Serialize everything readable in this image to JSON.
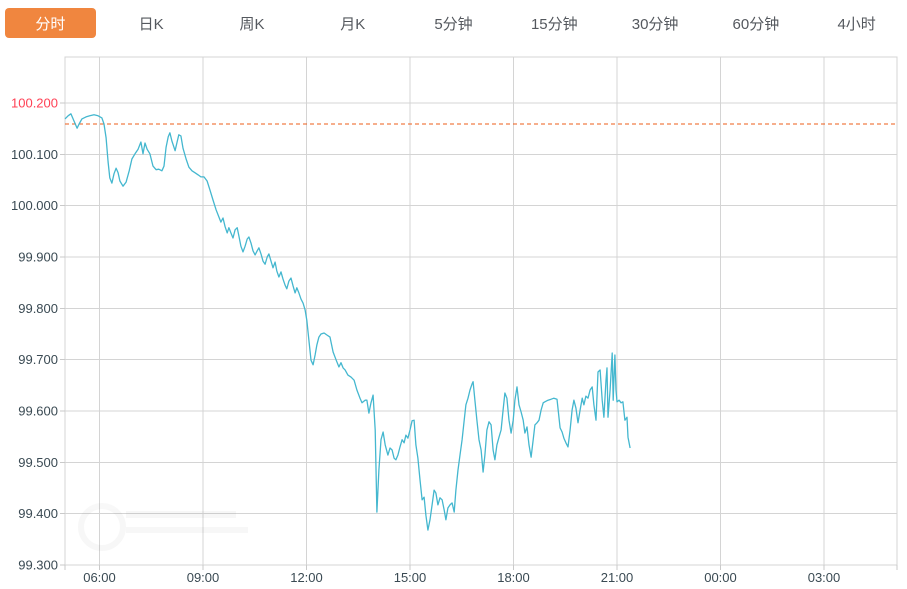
{
  "tabs": [
    {
      "label": "分时",
      "active": true
    },
    {
      "label": "日K",
      "active": false
    },
    {
      "label": "周K",
      "active": false
    },
    {
      "label": "月K",
      "active": false
    },
    {
      "label": "5分钟",
      "active": false
    },
    {
      "label": "15分钟",
      "active": false
    },
    {
      "label": "30分钟",
      "active": false
    },
    {
      "label": "60分钟",
      "active": false
    },
    {
      "label": "4小时",
      "active": false
    }
  ],
  "colors": {
    "accent_orange": "#f0863f",
    "tab_text": "#54585e",
    "axis_text": "#3a4a53",
    "highlight_red": "#ff4155",
    "grid": "#d4d4d4",
    "tick": "#c9c9c9",
    "line": "#44b7cf",
    "previous_close": "#ee5d1a",
    "background": "#ffffff"
  },
  "chart_data": {
    "type": "line",
    "title": "",
    "xlabel": "",
    "ylabel": "",
    "legend": [],
    "grid": true,
    "ylim": [
      99.3,
      100.2
    ],
    "x_hours_visible": [
      0,
      24.1
    ],
    "x_start_time": "05:00",
    "previous_close": 100.159,
    "y_ticks": [
      {
        "label": "100.200",
        "value": 100.2,
        "color": "#ff4155"
      },
      {
        "label": "100.100",
        "value": 100.1,
        "color": "#3a4a53"
      },
      {
        "label": "100.000",
        "value": 100.0,
        "color": "#3a4a53"
      },
      {
        "label": "99.900",
        "value": 99.9,
        "color": "#3a4a53"
      },
      {
        "label": "99.800",
        "value": 99.8,
        "color": "#3a4a53"
      },
      {
        "label": "99.700",
        "value": 99.7,
        "color": "#3a4a53"
      },
      {
        "label": "99.600",
        "value": 99.6,
        "color": "#3a4a53"
      },
      {
        "label": "99.500",
        "value": 99.5,
        "color": "#3a4a53"
      },
      {
        "label": "99.400",
        "value": 99.4,
        "color": "#3a4a53"
      },
      {
        "label": "99.300",
        "value": 99.3,
        "color": "#3a4a53"
      }
    ],
    "x_ticks": [
      {
        "label": "06:00",
        "hour": 1
      },
      {
        "label": "09:00",
        "hour": 4
      },
      {
        "label": "12:00",
        "hour": 7
      },
      {
        "label": "15:00",
        "hour": 10
      },
      {
        "label": "18:00",
        "hour": 13
      },
      {
        "label": "21:00",
        "hour": 16
      },
      {
        "label": "00:00",
        "hour": 19
      },
      {
        "label": "03:00",
        "hour": 22
      }
    ],
    "points": [
      [
        0,
        100.169
      ],
      [
        0.09,
        100.175
      ],
      [
        0.17,
        100.179
      ],
      [
        0.26,
        100.165
      ],
      [
        0.35,
        100.151
      ],
      [
        0.41,
        100.159
      ],
      [
        0.49,
        100.169
      ],
      [
        0.61,
        100.173
      ],
      [
        0.72,
        100.175
      ],
      [
        0.84,
        100.177
      ],
      [
        0.96,
        100.175
      ],
      [
        1.07,
        100.171
      ],
      [
        1.13,
        100.159
      ],
      [
        1.19,
        100.132
      ],
      [
        1.25,
        100.085
      ],
      [
        1.3,
        100.054
      ],
      [
        1.36,
        100.044
      ],
      [
        1.42,
        100.062
      ],
      [
        1.48,
        100.073
      ],
      [
        1.54,
        100.064
      ],
      [
        1.59,
        100.048
      ],
      [
        1.68,
        100.038
      ],
      [
        1.77,
        100.046
      ],
      [
        1.86,
        100.068
      ],
      [
        1.94,
        100.091
      ],
      [
        2.03,
        100.101
      ],
      [
        2.12,
        100.11
      ],
      [
        2.2,
        100.124
      ],
      [
        2.26,
        100.101
      ],
      [
        2.32,
        100.122
      ],
      [
        2.38,
        100.11
      ],
      [
        2.46,
        100.101
      ],
      [
        2.55,
        100.077
      ],
      [
        2.64,
        100.07
      ],
      [
        2.72,
        100.071
      ],
      [
        2.81,
        100.068
      ],
      [
        2.87,
        100.077
      ],
      [
        2.93,
        100.114
      ],
      [
        2.99,
        100.134
      ],
      [
        3.04,
        100.142
      ],
      [
        3.1,
        100.126
      ],
      [
        3.19,
        100.107
      ],
      [
        3.25,
        100.124
      ],
      [
        3.3,
        100.138
      ],
      [
        3.36,
        100.136
      ],
      [
        3.42,
        100.112
      ],
      [
        3.51,
        100.091
      ],
      [
        3.59,
        100.075
      ],
      [
        3.68,
        100.068
      ],
      [
        3.77,
        100.064
      ],
      [
        3.86,
        100.06
      ],
      [
        3.94,
        100.056
      ],
      [
        4.03,
        100.056
      ],
      [
        4.12,
        100.048
      ],
      [
        4.2,
        100.031
      ],
      [
        4.29,
        100.011
      ],
      [
        4.38,
        99.992
      ],
      [
        4.46,
        99.978
      ],
      [
        4.52,
        99.968
      ],
      [
        4.58,
        99.976
      ],
      [
        4.64,
        99.959
      ],
      [
        4.7,
        99.947
      ],
      [
        4.75,
        99.957
      ],
      [
        4.81,
        99.947
      ],
      [
        4.87,
        99.937
      ],
      [
        4.93,
        99.953
      ],
      [
        4.99,
        99.957
      ],
      [
        5.04,
        99.941
      ],
      [
        5.1,
        99.921
      ],
      [
        5.16,
        99.91
      ],
      [
        5.22,
        99.921
      ],
      [
        5.28,
        99.935
      ],
      [
        5.33,
        99.939
      ],
      [
        5.39,
        99.927
      ],
      [
        5.45,
        99.912
      ],
      [
        5.51,
        99.904
      ],
      [
        5.57,
        99.912
      ],
      [
        5.62,
        99.918
      ],
      [
        5.68,
        99.906
      ],
      [
        5.74,
        99.892
      ],
      [
        5.8,
        99.886
      ],
      [
        5.86,
        99.9
      ],
      [
        5.91,
        99.906
      ],
      [
        5.97,
        99.892
      ],
      [
        6.03,
        99.879
      ],
      [
        6.09,
        99.89
      ],
      [
        6.14,
        99.873
      ],
      [
        6.2,
        99.861
      ],
      [
        6.26,
        99.871
      ],
      [
        6.32,
        99.857
      ],
      [
        6.38,
        99.845
      ],
      [
        6.43,
        99.838
      ],
      [
        6.49,
        99.853
      ],
      [
        6.55,
        99.859
      ],
      [
        6.61,
        99.844
      ],
      [
        6.67,
        99.83
      ],
      [
        6.72,
        99.84
      ],
      [
        6.78,
        99.83
      ],
      [
        6.84,
        99.818
      ],
      [
        6.9,
        99.81
      ],
      [
        6.96,
        99.797
      ],
      [
        7.01,
        99.777
      ],
      [
        7.07,
        99.738
      ],
      [
        7.13,
        99.699
      ],
      [
        7.19,
        99.69
      ],
      [
        7.25,
        99.709
      ],
      [
        7.3,
        99.729
      ],
      [
        7.36,
        99.744
      ],
      [
        7.42,
        99.75
      ],
      [
        7.51,
        99.752
      ],
      [
        7.59,
        99.748
      ],
      [
        7.68,
        99.744
      ],
      [
        7.77,
        99.715
      ],
      [
        7.86,
        99.699
      ],
      [
        7.94,
        99.686
      ],
      [
        8,
        99.694
      ],
      [
        8.06,
        99.684
      ],
      [
        8.12,
        99.68
      ],
      [
        8.2,
        99.67
      ],
      [
        8.29,
        99.666
      ],
      [
        8.38,
        99.66
      ],
      [
        8.46,
        99.641
      ],
      [
        8.55,
        99.625
      ],
      [
        8.61,
        99.616
      ],
      [
        8.7,
        99.621
      ],
      [
        8.75,
        99.621
      ],
      [
        8.81,
        99.596
      ],
      [
        8.87,
        99.616
      ],
      [
        8.93,
        99.631
      ],
      [
        8.99,
        99.563
      ],
      [
        9.04,
        99.403
      ],
      [
        9.1,
        99.485
      ],
      [
        9.16,
        99.544
      ],
      [
        9.22,
        99.559
      ],
      [
        9.28,
        99.534
      ],
      [
        9.36,
        99.514
      ],
      [
        9.42,
        99.528
      ],
      [
        9.48,
        99.524
      ],
      [
        9.54,
        99.508
      ],
      [
        9.59,
        99.505
      ],
      [
        9.65,
        99.514
      ],
      [
        9.71,
        99.53
      ],
      [
        9.77,
        99.544
      ],
      [
        9.83,
        99.538
      ],
      [
        9.88,
        99.553
      ],
      [
        9.94,
        99.547
      ],
      [
        10,
        99.563
      ],
      [
        10.06,
        99.581
      ],
      [
        10.12,
        99.582
      ],
      [
        10.17,
        99.534
      ],
      [
        10.23,
        99.508
      ],
      [
        10.29,
        99.466
      ],
      [
        10.35,
        99.427
      ],
      [
        10.41,
        99.432
      ],
      [
        10.46,
        99.397
      ],
      [
        10.52,
        99.368
      ],
      [
        10.58,
        99.388
      ],
      [
        10.64,
        99.417
      ],
      [
        10.7,
        99.446
      ],
      [
        10.75,
        99.44
      ],
      [
        10.81,
        99.417
      ],
      [
        10.87,
        99.431
      ],
      [
        10.93,
        99.427
      ],
      [
        10.99,
        99.407
      ],
      [
        11.04,
        99.388
      ],
      [
        11.1,
        99.411
      ],
      [
        11.16,
        99.417
      ],
      [
        11.22,
        99.421
      ],
      [
        11.28,
        99.403
      ],
      [
        11.33,
        99.446
      ],
      [
        11.39,
        99.485
      ],
      [
        11.45,
        99.514
      ],
      [
        11.51,
        99.544
      ],
      [
        11.57,
        99.582
      ],
      [
        11.62,
        99.612
      ],
      [
        11.68,
        99.625
      ],
      [
        11.74,
        99.641
      ],
      [
        11.8,
        99.653
      ],
      [
        11.83,
        99.657
      ],
      [
        11.88,
        99.621
      ],
      [
        11.94,
        99.582
      ],
      [
        12,
        99.544
      ],
      [
        12.06,
        99.524
      ],
      [
        12.12,
        99.481
      ],
      [
        12.17,
        99.514
      ],
      [
        12.23,
        99.563
      ],
      [
        12.29,
        99.579
      ],
      [
        12.35,
        99.573
      ],
      [
        12.41,
        99.524
      ],
      [
        12.46,
        99.505
      ],
      [
        12.52,
        99.534
      ],
      [
        12.58,
        99.549
      ],
      [
        12.64,
        99.563
      ],
      [
        12.7,
        99.602
      ],
      [
        12.75,
        99.635
      ],
      [
        12.81,
        99.625
      ],
      [
        12.87,
        99.582
      ],
      [
        12.93,
        99.557
      ],
      [
        12.99,
        99.582
      ],
      [
        13.04,
        99.621
      ],
      [
        13.1,
        99.647
      ],
      [
        13.16,
        99.612
      ],
      [
        13.22,
        99.598
      ],
      [
        13.28,
        99.582
      ],
      [
        13.33,
        99.557
      ],
      [
        13.39,
        99.569
      ],
      [
        13.45,
        99.534
      ],
      [
        13.51,
        99.51
      ],
      [
        13.57,
        99.544
      ],
      [
        13.62,
        99.573
      ],
      [
        13.68,
        99.577
      ],
      [
        13.74,
        99.582
      ],
      [
        13.8,
        99.602
      ],
      [
        13.86,
        99.616
      ],
      [
        13.91,
        99.618
      ],
      [
        14,
        99.621
      ],
      [
        14.09,
        99.623
      ],
      [
        14.17,
        99.625
      ],
      [
        14.26,
        99.623
      ],
      [
        14.35,
        99.567
      ],
      [
        14.41,
        99.559
      ],
      [
        14.46,
        99.547
      ],
      [
        14.52,
        99.538
      ],
      [
        14.58,
        99.53
      ],
      [
        14.64,
        99.563
      ],
      [
        14.7,
        99.602
      ],
      [
        14.75,
        99.621
      ],
      [
        14.81,
        99.606
      ],
      [
        14.87,
        99.577
      ],
      [
        14.93,
        99.602
      ],
      [
        14.99,
        99.625
      ],
      [
        15.04,
        99.612
      ],
      [
        15.1,
        99.629
      ],
      [
        15.16,
        99.625
      ],
      [
        15.22,
        99.641
      ],
      [
        15.28,
        99.647
      ],
      [
        15.33,
        99.612
      ],
      [
        15.39,
        99.582
      ],
      [
        15.45,
        99.676
      ],
      [
        15.51,
        99.68
      ],
      [
        15.57,
        99.621
      ],
      [
        15.62,
        99.588
      ],
      [
        15.68,
        99.66
      ],
      [
        15.71,
        99.684
      ],
      [
        15.74,
        99.588
      ],
      [
        15.8,
        99.641
      ],
      [
        15.86,
        99.713
      ],
      [
        15.89,
        99.621
      ],
      [
        15.91,
        99.66
      ],
      [
        15.94,
        99.709
      ],
      [
        15.97,
        99.641
      ],
      [
        16,
        99.618
      ],
      [
        16.06,
        99.621
      ],
      [
        16.12,
        99.616
      ],
      [
        16.17,
        99.618
      ],
      [
        16.23,
        99.582
      ],
      [
        16.29,
        99.588
      ],
      [
        16.32,
        99.549
      ],
      [
        16.38,
        99.528
      ]
    ]
  }
}
